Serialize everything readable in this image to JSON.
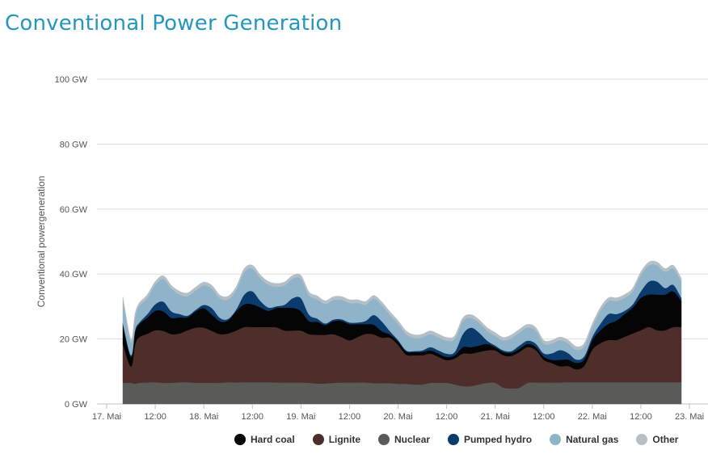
{
  "page_title": "Conventional Power Generation",
  "chart_data": {
    "type": "area",
    "stacked": true,
    "title": "Conventional Power Generation",
    "xlabel": "",
    "ylabel": "Conventional powergeneration",
    "ylim": [
      0,
      100
    ],
    "yticks": [
      0,
      20,
      40,
      60,
      80,
      100
    ],
    "ytick_labels": [
      "0 GW",
      "20 GW",
      "40 GW",
      "60 GW",
      "80 GW",
      "100 GW"
    ],
    "x_unit": "hours since 17. Mai 00:00",
    "xlim": [
      0,
      143
    ],
    "xticks": [
      0,
      12,
      24,
      36,
      48,
      60,
      72,
      84,
      96,
      108,
      120,
      132,
      144
    ],
    "xtick_labels": [
      "17. Mai",
      "12:00",
      "18. Mai",
      "12:00",
      "19. Mai",
      "12:00",
      "20. Mai",
      "12:00",
      "21. Mai",
      "12:00",
      "22. Mai",
      "12:00",
      "23. Mai"
    ],
    "grid": true,
    "legend_position": "bottom",
    "x": [
      4,
      6,
      7,
      8,
      10,
      12,
      14,
      16,
      18,
      20,
      22,
      24,
      26,
      28,
      30,
      32,
      34,
      36,
      38,
      40,
      42,
      44,
      46,
      48,
      50,
      52,
      54,
      56,
      58,
      60,
      62,
      64,
      66,
      68,
      70,
      72,
      74,
      76,
      78,
      80,
      82,
      84,
      86,
      88,
      90,
      92,
      94,
      96,
      98,
      100,
      102,
      104,
      106,
      108,
      110,
      112,
      114,
      116,
      118,
      120,
      122,
      124,
      126,
      128,
      130,
      132,
      134,
      136,
      138,
      140,
      142
    ],
    "series": [
      {
        "name": "Nuclear",
        "color": "#5a5a58",
        "values": [
          6.5,
          6.5,
          6.2,
          6.5,
          6.6,
          6.7,
          6.5,
          6.5,
          6.7,
          6.7,
          6.5,
          6.5,
          6.5,
          6.5,
          6.7,
          6.6,
          6.7,
          6.7,
          6.7,
          6.7,
          6.6,
          6.6,
          6.6,
          6.6,
          6.5,
          6.3,
          6.3,
          6.5,
          6.6,
          6.6,
          6.6,
          6.6,
          6.4,
          6.4,
          6.4,
          6.2,
          6.2,
          6.0,
          6.0,
          6.5,
          6.5,
          6.5,
          6.0,
          5.5,
          5.5,
          6.0,
          6.5,
          6.5,
          5.0,
          4.8,
          5.0,
          6.5,
          6.6,
          6.6,
          6.6,
          6.6,
          6.7,
          6.7,
          6.7,
          6.7,
          6.7,
          6.7,
          6.7,
          6.7,
          6.7,
          6.7,
          6.7,
          6.7,
          6.7,
          6.7,
          6.7
        ]
      },
      {
        "name": "Lignite",
        "color": "#4e2e2a",
        "values": [
          12,
          5,
          12,
          14,
          15,
          16,
          16,
          15,
          15,
          16,
          17,
          17,
          16,
          15,
          15,
          16,
          17,
          17,
          17,
          17,
          17,
          16,
          16,
          16,
          15,
          15,
          15,
          15,
          14,
          13,
          14,
          15,
          15,
          14,
          14,
          12,
          9,
          9,
          9,
          9,
          8,
          7,
          8,
          10,
          10,
          10,
          10,
          10,
          10,
          10,
          11,
          11,
          10,
          7,
          6,
          5,
          5,
          4,
          5,
          10,
          12,
          13,
          13,
          14,
          15,
          16,
          17,
          16,
          16,
          17,
          17
        ]
      },
      {
        "name": "Hard coal",
        "color": "#050505",
        "values": [
          6,
          3,
          4,
          4,
          5,
          6,
          6,
          5,
          5,
          4,
          5,
          6,
          5,
          4,
          4,
          6,
          7,
          7,
          6,
          5,
          6,
          7,
          7,
          6,
          4,
          4,
          3,
          4,
          5,
          5,
          4,
          3,
          3,
          2,
          1,
          1,
          1,
          1,
          1,
          1,
          1,
          1,
          1,
          2,
          2,
          2,
          2,
          1,
          1,
          1,
          1,
          1,
          1,
          1,
          1,
          2,
          2,
          2,
          2,
          3,
          4,
          5,
          6,
          7,
          8,
          10,
          10,
          11,
          11,
          11,
          8
        ]
      },
      {
        "name": "Pumped hydro",
        "color": "#0b3a6c",
        "values": [
          0.5,
          0.5,
          0.5,
          0.5,
          1,
          2,
          3,
          2,
          1,
          0.5,
          0.5,
          1,
          2,
          1,
          0.5,
          0.5,
          3,
          4,
          2,
          1,
          0.5,
          1,
          3,
          4,
          2,
          1,
          0.5,
          0.5,
          0.5,
          0.5,
          0.5,
          1,
          3,
          3,
          1,
          0.5,
          0.3,
          0.3,
          0.5,
          1,
          1,
          1,
          1,
          4,
          6,
          4,
          1,
          0.5,
          0.5,
          0.5,
          1,
          1,
          1,
          1,
          2,
          3,
          2,
          1,
          1,
          1,
          2,
          3,
          2,
          1,
          1,
          2,
          4,
          4,
          2,
          2,
          1
        ]
      },
      {
        "name": "Natural gas",
        "color": "#8fb3c8",
        "values": [
          7,
          4,
          4,
          5,
          5,
          6,
          7,
          7,
          6,
          6,
          6,
          6,
          6,
          6,
          6,
          6,
          7,
          7,
          7,
          7,
          6,
          6,
          6,
          6,
          6,
          6,
          6,
          6,
          6,
          6,
          6,
          5,
          5,
          5,
          5,
          5,
          5,
          4,
          4,
          4,
          4,
          4,
          4,
          4,
          3,
          3,
          3,
          3,
          3,
          4,
          4,
          4,
          4,
          3,
          3,
          3,
          3,
          3,
          3,
          3,
          4,
          4,
          4,
          4,
          4,
          5,
          5,
          5,
          5,
          5,
          5
        ]
      },
      {
        "name": "Other",
        "color": "#b6bfc6",
        "values": [
          1,
          1,
          1,
          1,
          1,
          1,
          1,
          1,
          1,
          1,
          1,
          1,
          1,
          1,
          1,
          1,
          1,
          1,
          1,
          1,
          1,
          1,
          1,
          1,
          1,
          1,
          1,
          1,
          1,
          1,
          1,
          1,
          1,
          1,
          1,
          1,
          1,
          1,
          1,
          1,
          1,
          1,
          1,
          1,
          1,
          1,
          1,
          1,
          1,
          1,
          1,
          1,
          1,
          1,
          1,
          1,
          1,
          1,
          1,
          1,
          1,
          1,
          1,
          1,
          1,
          1,
          1,
          1,
          1,
          1,
          1
        ]
      }
    ],
    "legend": [
      "Hard coal",
      "Lignite",
      "Nuclear",
      "Pumped hydro",
      "Natural gas",
      "Other"
    ]
  }
}
